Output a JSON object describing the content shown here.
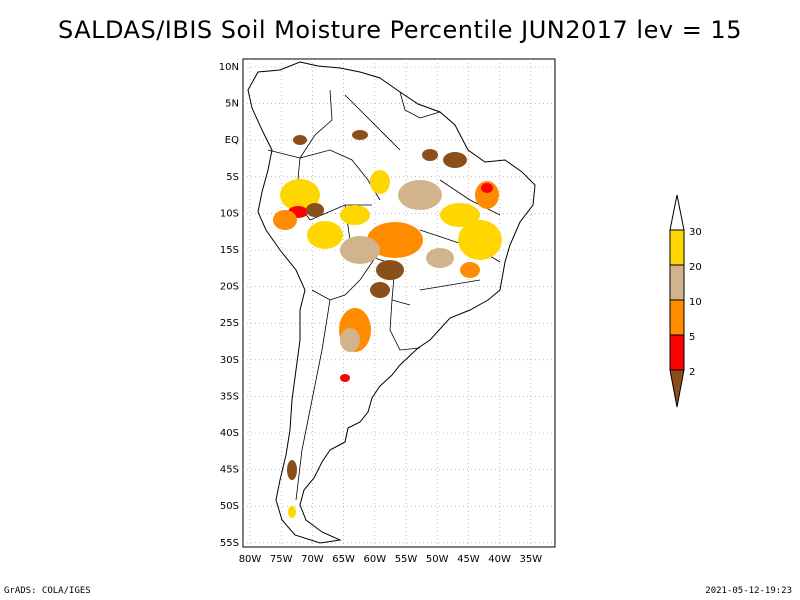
{
  "title": "SALDAS/IBIS Soil Moisture Percentile JUN2017 lev = 15",
  "map": {
    "lat_ticks": [
      "10N",
      "5N",
      "EQ",
      "5S",
      "10S",
      "15S",
      "20S",
      "25S",
      "30S",
      "35S",
      "40S",
      "45S",
      "50S",
      "55S"
    ],
    "lon_ticks": [
      "80W",
      "75W",
      "70W",
      "65W",
      "60W",
      "55W",
      "50W",
      "45W",
      "40W",
      "35W"
    ],
    "grid": "dotted",
    "extent": {
      "lon": [
        -80,
        -33
      ],
      "lat": [
        -56,
        11
      ]
    }
  },
  "colorbar": {
    "levels": [
      "2",
      "5",
      "10",
      "20",
      "30"
    ],
    "colors": {
      "below_2": "#8b4f1b",
      "2_5": "#ff0000",
      "5_10": "#ff8c00",
      "10_20": "#d2b48c",
      "20_30": "#ffd700",
      "above_30": "#ffffff"
    }
  },
  "footer": {
    "left": "GrADS: COLA/IGES",
    "right": "2021-05-12-19:23"
  }
}
